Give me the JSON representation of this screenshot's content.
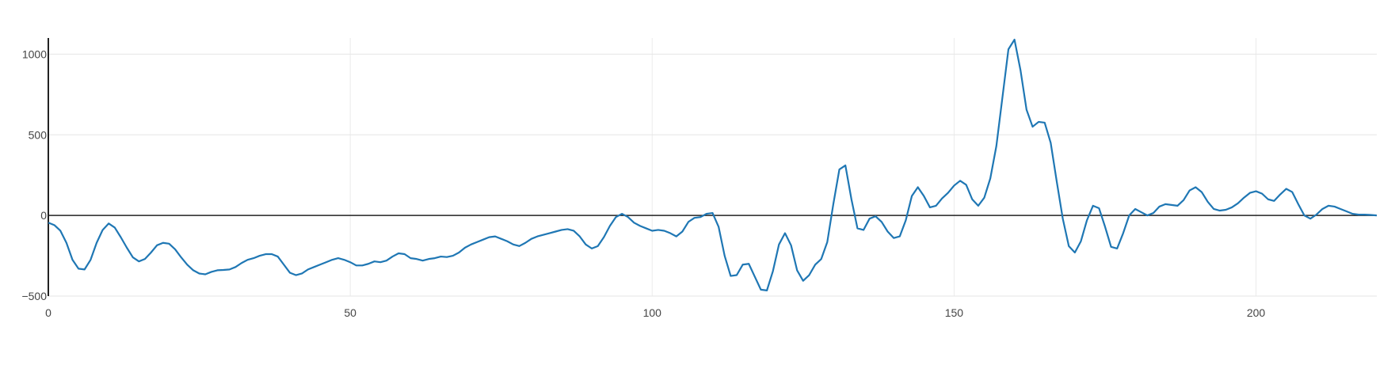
{
  "chart_data": {
    "type": "line",
    "title": "",
    "xlabel": "",
    "ylabel": "",
    "xlim": [
      0,
      220
    ],
    "ylim": [
      -500,
      1100
    ],
    "x_ticks": [
      0,
      50,
      100,
      150,
      200
    ],
    "y_ticks": [
      -500,
      0,
      500,
      1000
    ],
    "x_tick_labels": [
      "0",
      "50",
      "100",
      "150",
      "200"
    ],
    "y_tick_labels": [
      "−500",
      "0",
      "500",
      "1000"
    ],
    "grid": true,
    "legend": "none",
    "series": [
      {
        "color": "#1f77b4",
        "points": [
          [
            0,
            -45
          ],
          [
            1,
            -60
          ],
          [
            2,
            -95
          ],
          [
            3,
            -170
          ],
          [
            4,
            -275
          ],
          [
            5,
            -330
          ],
          [
            6,
            -335
          ],
          [
            7,
            -275
          ],
          [
            8,
            -170
          ],
          [
            9,
            -90
          ],
          [
            10,
            -50
          ],
          [
            11,
            -75
          ],
          [
            12,
            -135
          ],
          [
            13,
            -200
          ],
          [
            14,
            -260
          ],
          [
            15,
            -285
          ],
          [
            16,
            -270
          ],
          [
            17,
            -230
          ],
          [
            18,
            -185
          ],
          [
            19,
            -170
          ],
          [
            20,
            -175
          ],
          [
            21,
            -210
          ],
          [
            22,
            -260
          ],
          [
            23,
            -305
          ],
          [
            24,
            -340
          ],
          [
            25,
            -360
          ],
          [
            26,
            -365
          ],
          [
            27,
            -350
          ],
          [
            28,
            -340
          ],
          [
            29,
            -338
          ],
          [
            30,
            -335
          ],
          [
            31,
            -320
          ],
          [
            32,
            -295
          ],
          [
            33,
            -275
          ],
          [
            34,
            -265
          ],
          [
            35,
            -250
          ],
          [
            36,
            -240
          ],
          [
            37,
            -240
          ],
          [
            38,
            -255
          ],
          [
            39,
            -305
          ],
          [
            40,
            -355
          ],
          [
            41,
            -370
          ],
          [
            42,
            -360
          ],
          [
            43,
            -335
          ],
          [
            44,
            -320
          ],
          [
            45,
            -305
          ],
          [
            46,
            -290
          ],
          [
            47,
            -275
          ],
          [
            48,
            -265
          ],
          [
            49,
            -275
          ],
          [
            50,
            -290
          ],
          [
            51,
            -310
          ],
          [
            52,
            -310
          ],
          [
            53,
            -300
          ],
          [
            54,
            -285
          ],
          [
            55,
            -290
          ],
          [
            56,
            -280
          ],
          [
            57,
            -255
          ],
          [
            58,
            -235
          ],
          [
            59,
            -240
          ],
          [
            60,
            -265
          ],
          [
            61,
            -270
          ],
          [
            62,
            -280
          ],
          [
            63,
            -270
          ],
          [
            64,
            -265
          ],
          [
            65,
            -255
          ],
          [
            66,
            -258
          ],
          [
            67,
            -250
          ],
          [
            68,
            -230
          ],
          [
            69,
            -200
          ],
          [
            70,
            -180
          ],
          [
            71,
            -165
          ],
          [
            72,
            -150
          ],
          [
            73,
            -135
          ],
          [
            74,
            -130
          ],
          [
            75,
            -145
          ],
          [
            76,
            -160
          ],
          [
            77,
            -180
          ],
          [
            78,
            -190
          ],
          [
            79,
            -170
          ],
          [
            80,
            -145
          ],
          [
            81,
            -130
          ],
          [
            82,
            -120
          ],
          [
            83,
            -110
          ],
          [
            84,
            -100
          ],
          [
            85,
            -90
          ],
          [
            86,
            -85
          ],
          [
            87,
            -95
          ],
          [
            88,
            -130
          ],
          [
            89,
            -180
          ],
          [
            90,
            -205
          ],
          [
            91,
            -190
          ],
          [
            92,
            -135
          ],
          [
            93,
            -65
          ],
          [
            94,
            -10
          ],
          [
            95,
            10
          ],
          [
            96,
            -10
          ],
          [
            97,
            -45
          ],
          [
            98,
            -65
          ],
          [
            99,
            -80
          ],
          [
            100,
            -95
          ],
          [
            101,
            -90
          ],
          [
            102,
            -95
          ],
          [
            103,
            -110
          ],
          [
            104,
            -130
          ],
          [
            105,
            -100
          ],
          [
            106,
            -40
          ],
          [
            107,
            -15
          ],
          [
            108,
            -10
          ],
          [
            109,
            10
          ],
          [
            110,
            15
          ],
          [
            111,
            -70
          ],
          [
            112,
            -250
          ],
          [
            113,
            -375
          ],
          [
            114,
            -370
          ],
          [
            115,
            -305
          ],
          [
            116,
            -300
          ],
          [
            117,
            -380
          ],
          [
            118,
            -460
          ],
          [
            119,
            -465
          ],
          [
            120,
            -345
          ],
          [
            121,
            -180
          ],
          [
            122,
            -110
          ],
          [
            123,
            -185
          ],
          [
            124,
            -340
          ],
          [
            125,
            -405
          ],
          [
            126,
            -370
          ],
          [
            127,
            -305
          ],
          [
            128,
            -270
          ],
          [
            129,
            -165
          ],
          [
            130,
            70
          ],
          [
            131,
            285
          ],
          [
            132,
            310
          ],
          [
            133,
            100
          ],
          [
            134,
            -80
          ],
          [
            135,
            -90
          ],
          [
            136,
            -20
          ],
          [
            137,
            -5
          ],
          [
            138,
            -40
          ],
          [
            139,
            -100
          ],
          [
            140,
            -140
          ],
          [
            141,
            -130
          ],
          [
            142,
            -30
          ],
          [
            143,
            120
          ],
          [
            144,
            175
          ],
          [
            145,
            120
          ],
          [
            146,
            50
          ],
          [
            147,
            60
          ],
          [
            148,
            105
          ],
          [
            149,
            140
          ],
          [
            150,
            185
          ],
          [
            151,
            215
          ],
          [
            152,
            190
          ],
          [
            153,
            100
          ],
          [
            154,
            60
          ],
          [
            155,
            110
          ],
          [
            156,
            230
          ],
          [
            157,
            430
          ],
          [
            158,
            730
          ],
          [
            159,
            1030
          ],
          [
            160,
            1090
          ],
          [
            161,
            900
          ],
          [
            162,
            655
          ],
          [
            163,
            550
          ],
          [
            164,
            580
          ],
          [
            165,
            575
          ],
          [
            166,
            450
          ],
          [
            167,
            210
          ],
          [
            168,
            -20
          ],
          [
            169,
            -190
          ],
          [
            170,
            -230
          ],
          [
            171,
            -160
          ],
          [
            172,
            -30
          ],
          [
            173,
            60
          ],
          [
            174,
            45
          ],
          [
            175,
            -70
          ],
          [
            176,
            -195
          ],
          [
            177,
            -205
          ],
          [
            178,
            -110
          ],
          [
            179,
            0
          ],
          [
            180,
            40
          ],
          [
            181,
            20
          ],
          [
            182,
            0
          ],
          [
            183,
            15
          ],
          [
            184,
            55
          ],
          [
            185,
            70
          ],
          [
            186,
            65
          ],
          [
            187,
            60
          ],
          [
            188,
            95
          ],
          [
            189,
            155
          ],
          [
            190,
            175
          ],
          [
            191,
            145
          ],
          [
            192,
            85
          ],
          [
            193,
            40
          ],
          [
            194,
            30
          ],
          [
            195,
            35
          ],
          [
            196,
            50
          ],
          [
            197,
            75
          ],
          [
            198,
            110
          ],
          [
            199,
            140
          ],
          [
            200,
            150
          ],
          [
            201,
            135
          ],
          [
            202,
            100
          ],
          [
            203,
            90
          ],
          [
            204,
            130
          ],
          [
            205,
            165
          ],
          [
            206,
            145
          ],
          [
            207,
            70
          ],
          [
            208,
            0
          ],
          [
            209,
            -20
          ],
          [
            210,
            5
          ],
          [
            211,
            40
          ],
          [
            212,
            60
          ],
          [
            213,
            55
          ],
          [
            214,
            40
          ],
          [
            215,
            25
          ],
          [
            216,
            10
          ],
          [
            217,
            5
          ],
          [
            218,
            5
          ],
          [
            219,
            3
          ],
          [
            220,
            0
          ]
        ]
      }
    ]
  }
}
